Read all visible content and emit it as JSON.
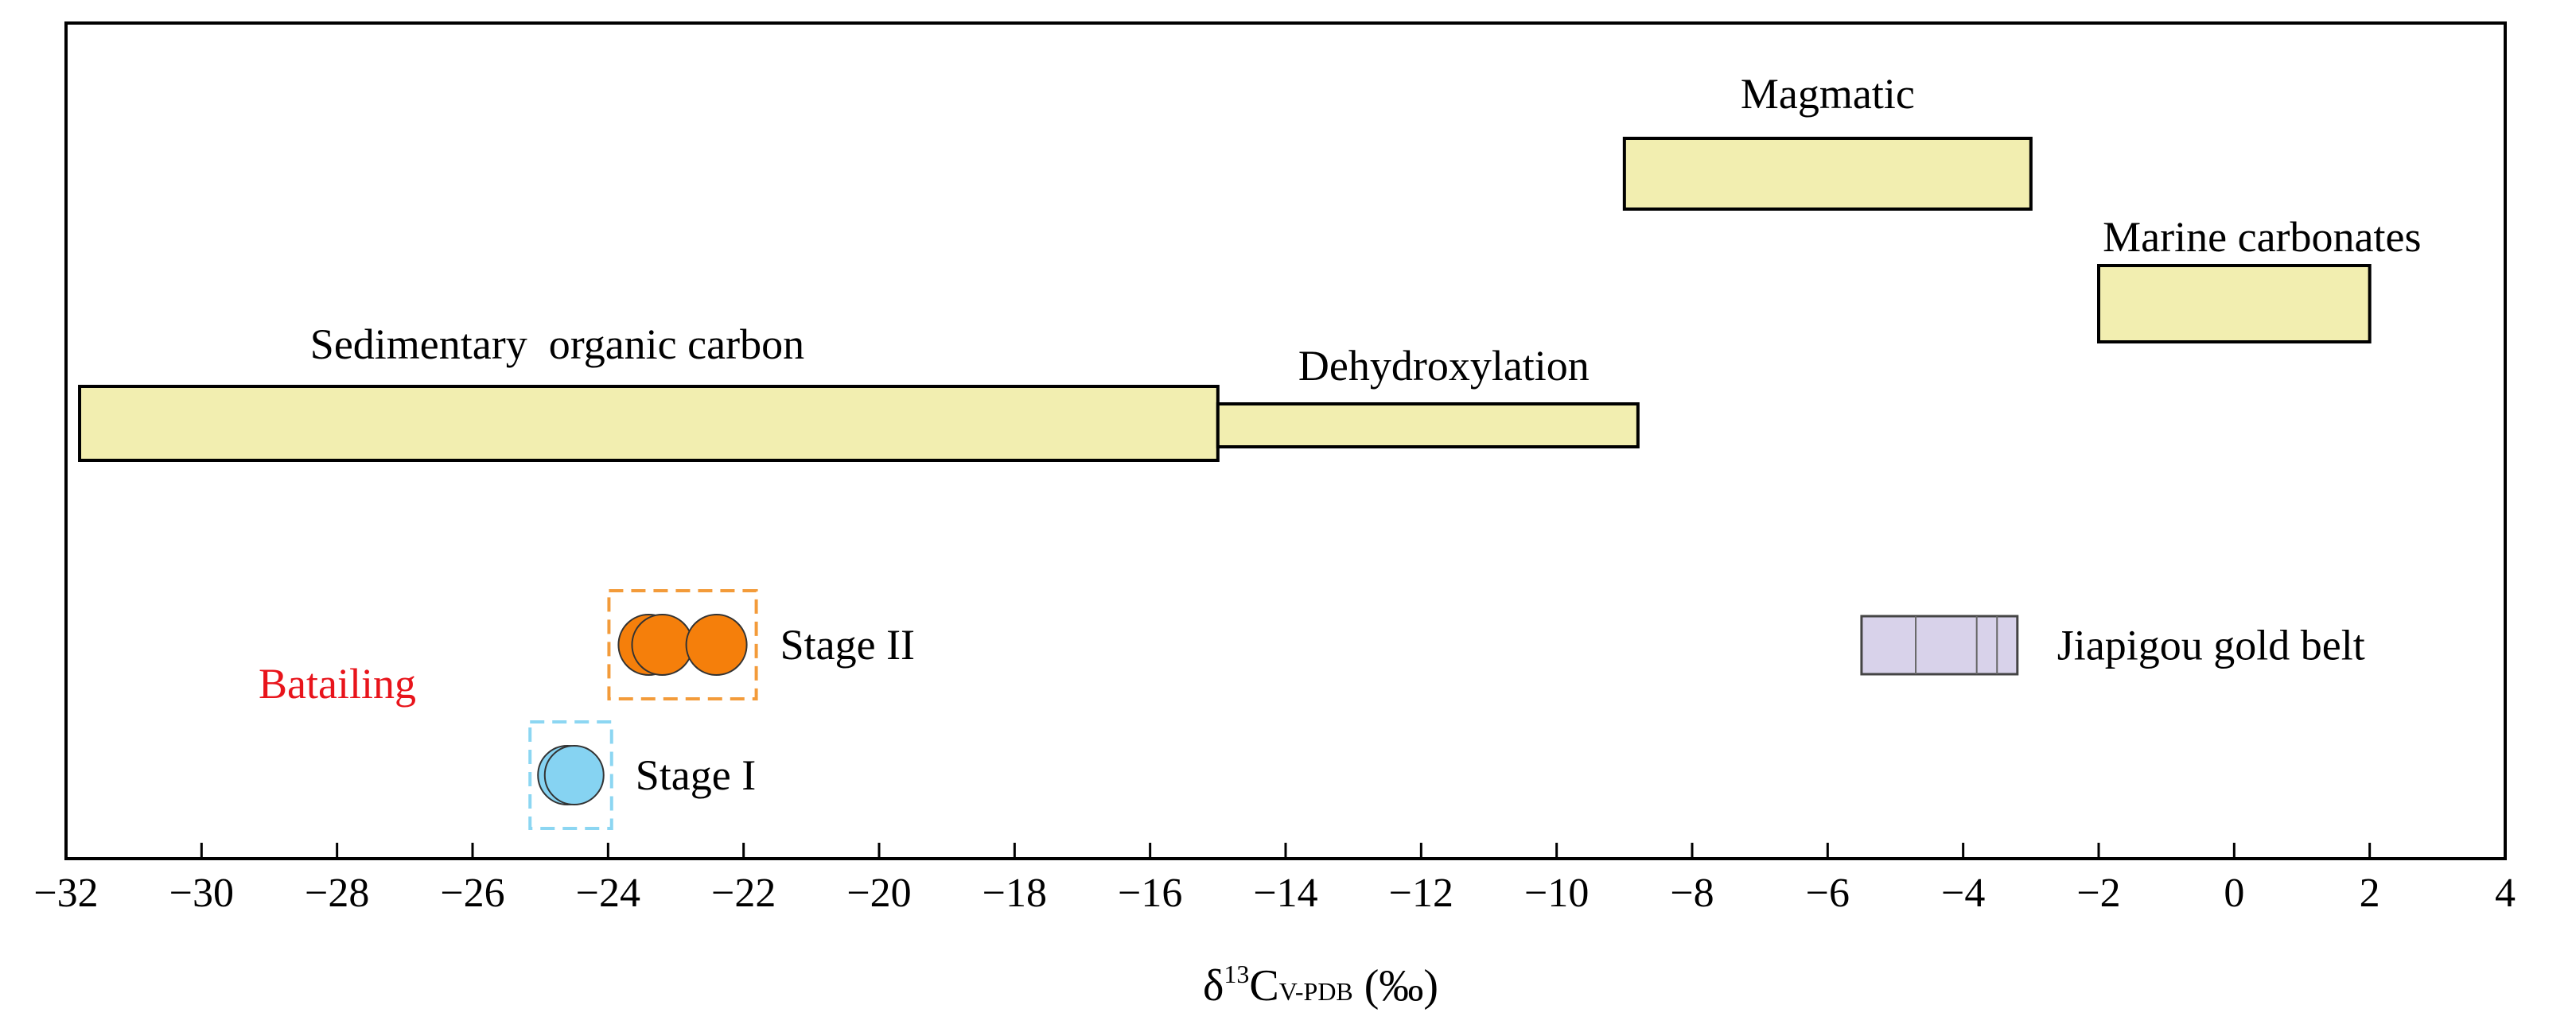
{
  "chart_data": {
    "type": "range",
    "xlim": [
      -32,
      4
    ],
    "x_ticks": [
      -32,
      -30,
      -28,
      -26,
      -24,
      -22,
      -20,
      -18,
      -16,
      -14,
      -12,
      -10,
      -8,
      -6,
      -4,
      -2,
      0,
      2,
      4
    ],
    "xlabel": {
      "delta": "δ",
      "superscript": "13",
      "main": "C",
      "subscript": "V-PDB",
      "unit": " (‰)"
    },
    "grid": false,
    "source_ranges": [
      {
        "label": "Magmatic",
        "x_min": -9,
        "x_max": -3,
        "fill": "#f2eeb0"
      },
      {
        "label": "Marine carbonates",
        "x_min": -2,
        "x_max": 2,
        "fill": "#f2eeb0"
      },
      {
        "label": "Sedimentary  organic carbon",
        "x_min": -31.8,
        "x_max": -15,
        "fill": "#f2eeb0"
      },
      {
        "label": "Dehydroxylation",
        "x_min": -15,
        "x_max": -8.8,
        "fill": "#f2eeb0"
      }
    ],
    "study_group_label": "Batailing",
    "study_group_color": "#e8141b",
    "stages": [
      {
        "label": "Stage II",
        "values": [
          -23.4,
          -23.2,
          -22.4
        ],
        "color": "#f57f0b",
        "box_color": "#f39b3a"
      },
      {
        "label": "Stage I",
        "values": [
          -24.6,
          -24.5
        ],
        "color": "#86d3f2",
        "box_color": "#8cd6f2"
      }
    ],
    "reference": {
      "label": "Jiapigou gold belt",
      "x_min": -5.5,
      "x_max": -3.2,
      "divisions": [
        -4.7,
        -3.8,
        -3.5
      ],
      "fill": "#d8d2ea"
    }
  }
}
